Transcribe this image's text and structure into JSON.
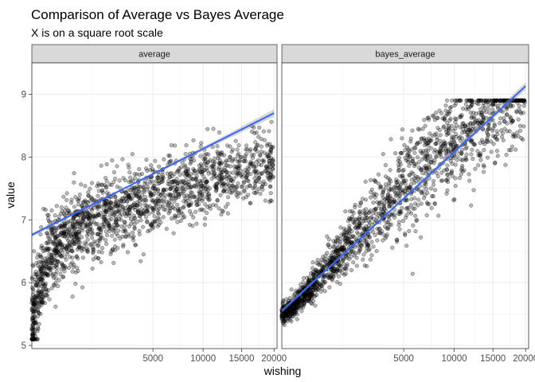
{
  "chart_data": {
    "type": "scatter",
    "title": "Comparison of Average vs Bayes Average",
    "subtitle": "X is on a square root scale",
    "xlabel": "wishing",
    "ylabel": "value",
    "x_scale": "sqrt",
    "xlim": [
      0,
      20500
    ],
    "ylim": [
      4.95,
      9.5
    ],
    "x_ticks": [
      5000,
      10000,
      15000,
      20000
    ],
    "x_tick_labels": [
      "5000",
      "10000",
      "15000",
      "20000"
    ],
    "y_ticks": [
      5,
      6,
      7,
      8,
      9
    ],
    "y_tick_labels": [
      "5",
      "6",
      "7",
      "8",
      "9"
    ],
    "grid": true,
    "point_color": "#000000",
    "point_alpha": 0.3,
    "smooth_color": "#3366FF",
    "smooth_band_color": "#999999",
    "strip_fill": "#D9D9D9",
    "facets": [
      {
        "name": "average",
        "n_points": 1800,
        "trend_line": {
          "x": [
            0,
            20000
          ],
          "y": [
            6.76,
            8.7
          ]
        },
        "series": [
          {
            "x": [
              0,
              10,
              50,
              100,
              200,
              400
            ],
            "y": [
              5.12,
              5.4,
              5.8,
              6.1,
              6.3,
              6.45
            ]
          },
          {
            "x": [
              500,
              2000,
              5000,
              10000,
              15000,
              20000
            ],
            "y": [
              7.0,
              7.4,
              7.75,
              8.05,
              8.3,
              8.55
            ]
          }
        ]
      },
      {
        "name": "bayes_average",
        "n_points": 1800,
        "trend_line": {
          "x": [
            0,
            20000
          ],
          "y": [
            5.55,
            9.13
          ]
        },
        "series": [
          {
            "x": [
              0,
              10,
              50,
              100,
              200,
              400
            ],
            "y": [
              5.5,
              5.52,
              5.6,
              5.7,
              5.8,
              5.9
            ]
          },
          {
            "x": [
              500,
              2000,
              5000,
              10000,
              15000,
              20000
            ],
            "y": [
              6.3,
              6.9,
              7.4,
              7.9,
              8.3,
              9.0
            ]
          }
        ]
      }
    ]
  }
}
